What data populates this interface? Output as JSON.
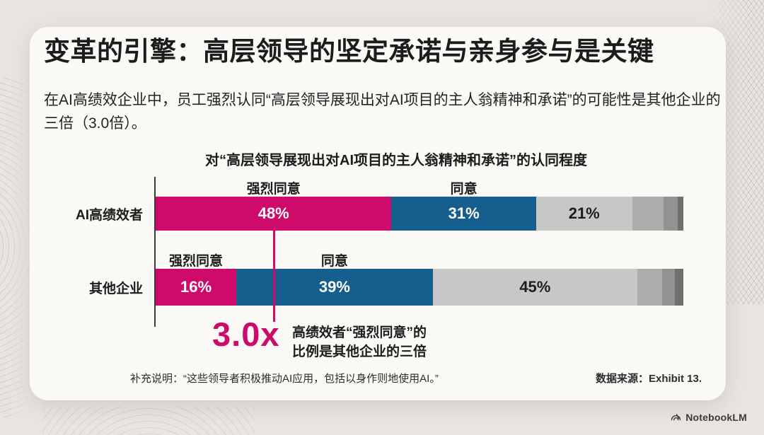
{
  "slide": {
    "title": "变革的引擎：高层领导的坚定承诺与亲身参与是关键",
    "intro": "在AI高绩效企业中，员工强烈认同“高层领导展现出对AI项目的主人翁精神和承诺”的可能性是其他企业的三倍（3.0倍）。",
    "footnote": "补充说明：“这些领导者积极推动AI应用，包括以身作则地使用AI。”",
    "source": "数据来源：Exhibit 13.",
    "brand": "NotebookLM"
  },
  "colors": {
    "magenta": "#ce0a6b",
    "blue": "#155e8d",
    "light_gray": "#c7c7c7",
    "mid_gray": "#adadad",
    "dark_gray": "#929292",
    "darkest_gray": "#6f6f6f"
  },
  "chart_data": {
    "type": "bar",
    "orientation": "horizontal",
    "stacked": true,
    "title": "对“高层领导展现出对AI项目的主人翁精神和承诺”的认同程度",
    "categories": [
      "AI高绩效者",
      "其他企业"
    ],
    "series": [
      {
        "name": "强烈同意",
        "color": "#ce0a6b",
        "values": [
          48,
          16
        ]
      },
      {
        "name": "同意",
        "color": "#155e8d",
        "values": [
          31,
          39
        ]
      },
      {
        "name": "",
        "color": "#c7c7c7",
        "values": [
          21,
          45
        ]
      }
    ],
    "annotation": {
      "multiplier": "3.0x",
      "line1": "高绩效者“强烈同意”的",
      "line2": "比例是其他企业的三倍"
    },
    "bars": [
      {
        "category": "AI高绩效者",
        "segments": [
          {
            "name": "强烈同意",
            "value_label": "48%",
            "width_pct": 44.7,
            "color": "#ce0a6b",
            "text_color": "#ffffff"
          },
          {
            "name": "同意",
            "value_label": "31%",
            "width_pct": 27.4,
            "color": "#155e8d",
            "text_color": "#ffffff"
          },
          {
            "name": "",
            "value_label": "21%",
            "width_pct": 18.2,
            "color": "#c7c7c7",
            "text_color": "#1d1d1d"
          },
          {
            "name": "",
            "value_label": "",
            "width_pct": 5.9,
            "color": "#adadad",
            "text_color": "#1d1d1d"
          },
          {
            "name": "",
            "value_label": "",
            "width_pct": 2.7,
            "color": "#929292",
            "text_color": "#1d1d1d"
          },
          {
            "name": "",
            "value_label": "",
            "width_pct": 1.1,
            "color": "#6f6f6f",
            "text_color": "#ffffff"
          }
        ]
      },
      {
        "category": "其他企业",
        "segments": [
          {
            "name": "强烈同意",
            "value_label": "16%",
            "width_pct": 15.3,
            "color": "#ce0a6b",
            "text_color": "#ffffff"
          },
          {
            "name": "同意",
            "value_label": "39%",
            "width_pct": 37.2,
            "color": "#155e8d",
            "text_color": "#ffffff"
          },
          {
            "name": "",
            "value_label": "45%",
            "width_pct": 38.8,
            "color": "#c7c7c7",
            "text_color": "#1d1d1d"
          },
          {
            "name": "",
            "value_label": "",
            "width_pct": 4.7,
            "color": "#adadad",
            "text_color": "#1d1d1d"
          },
          {
            "name": "",
            "value_label": "",
            "width_pct": 2.4,
            "color": "#929292",
            "text_color": "#1d1d1d"
          },
          {
            "name": "",
            "value_label": "",
            "width_pct": 1.6,
            "color": "#6f6f6f",
            "text_color": "#ffffff"
          }
        ]
      }
    ]
  }
}
